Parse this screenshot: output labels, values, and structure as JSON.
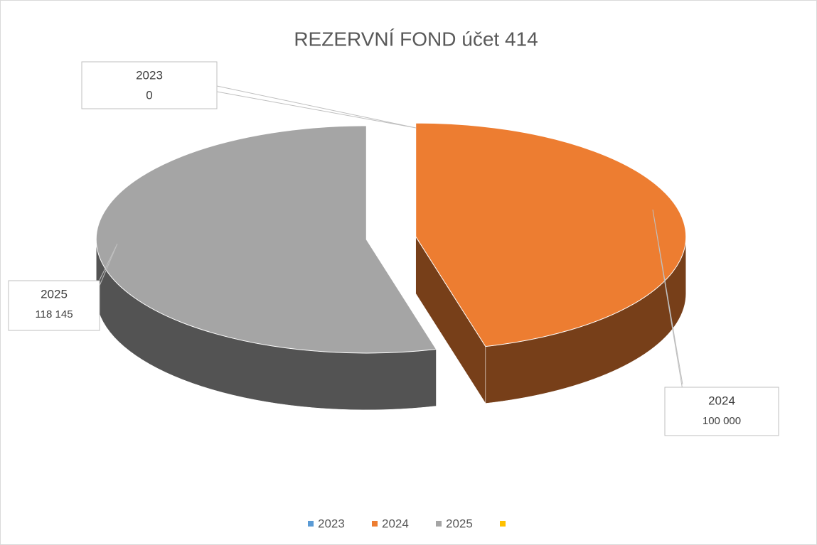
{
  "chart_data": {
    "type": "pie3d",
    "title": "REZERVNÍ FOND účet 414",
    "categories": [
      "2023",
      "2024",
      "2025",
      null
    ],
    "values": [
      0,
      100000,
      118145,
      null
    ],
    "value_labels": [
      "0",
      "100 000",
      "118 145",
      null
    ],
    "colors": [
      "#5b9bd5",
      "#ed7d31",
      "#a5a5a5",
      "#ffc000"
    ],
    "legend": "bottom"
  }
}
